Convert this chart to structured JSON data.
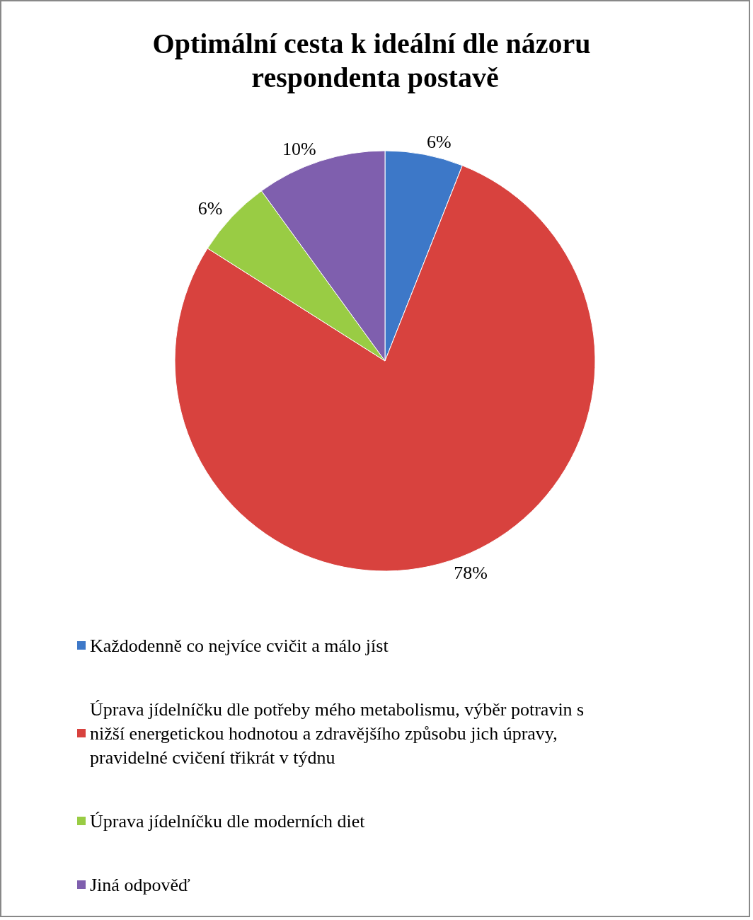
{
  "chart_data": {
    "type": "pie",
    "title": "Optimální cesta k ideální dle názoru respondenta postavě",
    "categories": [
      "Každodenně co nejvíce cvičit a málo jíst",
      "Úprava jídelníčku dle potřeby mého metabolismu, výběr potravin s nižší energetickou hodnotou a zdravějšího způsobu jich úpravy, pravidelné cvičení třikrát v týdnu",
      "Úprava jídelníčku dle moderních diet",
      "Jiná odpověď"
    ],
    "values": [
      6,
      78,
      6,
      10
    ],
    "colors": [
      "#3d78c8",
      "#d8423e",
      "#99cc44",
      "#7f5fae"
    ],
    "value_labels": [
      "6%",
      "78%",
      "6%",
      "10%"
    ],
    "legend": "bottom"
  }
}
